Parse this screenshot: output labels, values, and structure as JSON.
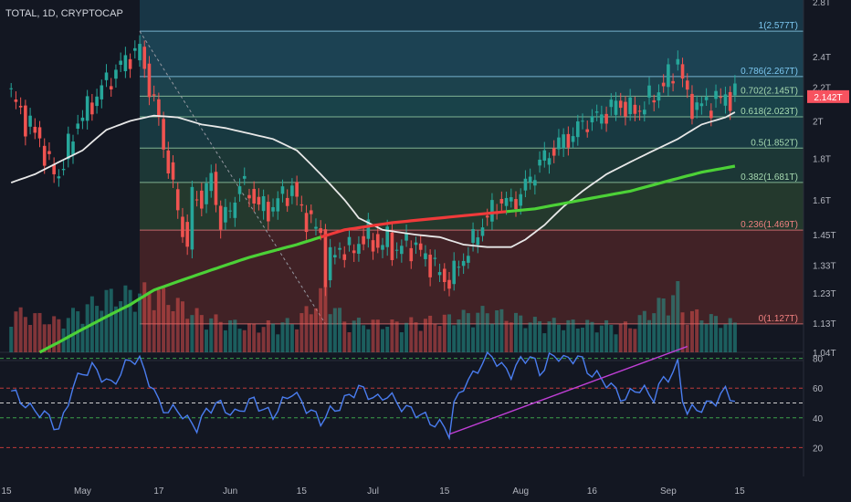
{
  "header": {
    "title": "TOTAL, 1D, CRYPTOCAP"
  },
  "colors": {
    "background": "#131722",
    "up": "#26a69a",
    "down": "#ef5350",
    "ma_fast": "#e8e8e8",
    "ma_slow_up": "#4cd137",
    "ma_slow_down": "#f03a3a",
    "rsi": "#4a7df0",
    "trendline": "#c03fd6",
    "dashed_overlay": "#9598a1",
    "last_price": "#f7525f"
  },
  "price_axis": {
    "ticks": [
      "2.8T",
      "2.4T",
      "2.2T",
      "2T",
      "1.8T",
      "1.6T",
      "1.45T",
      "1.33T",
      "1.23T",
      "1.13T",
      "1.04T"
    ],
    "tick_values": [
      2.8,
      2.4,
      2.2,
      2.0,
      1.8,
      1.6,
      1.45,
      1.33,
      1.23,
      1.13,
      1.04
    ],
    "last_price_label": "2.142T",
    "last_price": 2.142
  },
  "time_axis": {
    "ticks": [
      "15",
      "May",
      "17",
      "Jun",
      "15",
      "Jul",
      "15",
      "Aug",
      "16",
      "Sep",
      "15"
    ],
    "tick_days": [
      -1,
      15,
      31,
      46,
      61,
      76,
      91,
      107,
      122,
      138,
      153
    ]
  },
  "rsi_axis": {
    "ticks": [
      "80",
      "60",
      "40",
      "20"
    ],
    "values": [
      80,
      60,
      40,
      20
    ]
  },
  "chart_data": {
    "type": "candlestick",
    "title": "TOTAL, 1D, CRYPTOCAP",
    "scale": "log",
    "ylim": [
      1.04,
      2.8
    ],
    "xlim_days": [
      -1,
      166
    ],
    "fibonacci": {
      "levels": [
        {
          "ratio": "1",
          "value": 2.577,
          "label": "1(2.577T)"
        },
        {
          "ratio": "0.786",
          "value": 2.267,
          "label": "0.786(2.267T)"
        },
        {
          "ratio": "0.702",
          "value": 2.145,
          "label": "0.702(2.145T)"
        },
        {
          "ratio": "0.618",
          "value": 2.023,
          "label": "0.618(2.023T)"
        },
        {
          "ratio": "0.5",
          "value": 1.852,
          "label": "0.5(1.852T)"
        },
        {
          "ratio": "0.382",
          "value": 1.681,
          "label": "0.382(1.681T)"
        },
        {
          "ratio": "0.236",
          "value": 1.469,
          "label": "0.236(1.469T)"
        },
        {
          "ratio": "0",
          "value": 1.127,
          "label": "0(1.127T)"
        }
      ],
      "start_day": 27
    },
    "close_anchors": [
      [
        0,
        2.15
      ],
      [
        3,
        2.0
      ],
      [
        6,
        1.9
      ],
      [
        8,
        1.75
      ],
      [
        10,
        1.72
      ],
      [
        12,
        1.85
      ],
      [
        14,
        2.0
      ],
      [
        17,
        2.1
      ],
      [
        19,
        2.2
      ],
      [
        22,
        2.3
      ],
      [
        24,
        2.38
      ],
      [
        26,
        2.42
      ],
      [
        27,
        2.45
      ],
      [
        29,
        2.2
      ],
      [
        31,
        2.0
      ],
      [
        33,
        1.75
      ],
      [
        35,
        1.55
      ],
      [
        37,
        1.4
      ],
      [
        38,
        1.62
      ],
      [
        40,
        1.6
      ],
      [
        42,
        1.7
      ],
      [
        44,
        1.5
      ],
      [
        46,
        1.55
      ],
      [
        48,
        1.68
      ],
      [
        50,
        1.63
      ],
      [
        52,
        1.58
      ],
      [
        54,
        1.55
      ],
      [
        57,
        1.62
      ],
      [
        59,
        1.65
      ],
      [
        61,
        1.55
      ],
      [
        63,
        1.5
      ],
      [
        65,
        1.45
      ],
      [
        66,
        1.3
      ],
      [
        67,
        1.35
      ],
      [
        69,
        1.4
      ],
      [
        71,
        1.38
      ],
      [
        73,
        1.42
      ],
      [
        75,
        1.45
      ],
      [
        77,
        1.4
      ],
      [
        79,
        1.43
      ],
      [
        81,
        1.38
      ],
      [
        83,
        1.42
      ],
      [
        86,
        1.38
      ],
      [
        88,
        1.34
      ],
      [
        90,
        1.3
      ],
      [
        91,
        1.27
      ],
      [
        93,
        1.3
      ],
      [
        95,
        1.36
      ],
      [
        97,
        1.42
      ],
      [
        99,
        1.5
      ],
      [
        101,
        1.55
      ],
      [
        103,
        1.6
      ],
      [
        105,
        1.58
      ],
      [
        107,
        1.63
      ],
      [
        109,
        1.7
      ],
      [
        111,
        1.78
      ],
      [
        113,
        1.82
      ],
      [
        115,
        1.88
      ],
      [
        117,
        1.9
      ],
      [
        119,
        1.96
      ],
      [
        121,
        2.0
      ],
      [
        123,
        2.02
      ],
      [
        125,
        2.05
      ],
      [
        127,
        2.1
      ],
      [
        129,
        2.08
      ],
      [
        131,
        2.05
      ],
      [
        133,
        2.1
      ],
      [
        135,
        2.15
      ],
      [
        137,
        2.22
      ],
      [
        139,
        2.3
      ],
      [
        140,
        2.38
      ],
      [
        141,
        2.25
      ],
      [
        142,
        2.12
      ],
      [
        144,
        2.08
      ],
      [
        146,
        2.1
      ],
      [
        148,
        2.12
      ],
      [
        150,
        2.14
      ],
      [
        151,
        2.142
      ]
    ],
    "ma_fast_anchors": [
      [
        0,
        1.68
      ],
      [
        5,
        1.72
      ],
      [
        10,
        1.78
      ],
      [
        15,
        1.84
      ],
      [
        20,
        1.95
      ],
      [
        25,
        2.0
      ],
      [
        30,
        2.03
      ],
      [
        35,
        2.02
      ],
      [
        40,
        1.98
      ],
      [
        45,
        1.96
      ],
      [
        50,
        1.93
      ],
      [
        55,
        1.9
      ],
      [
        60,
        1.84
      ],
      [
        65,
        1.72
      ],
      [
        70,
        1.6
      ],
      [
        73,
        1.52
      ],
      [
        78,
        1.47
      ],
      [
        85,
        1.45
      ],
      [
        90,
        1.44
      ],
      [
        95,
        1.41
      ],
      [
        100,
        1.4
      ],
      [
        105,
        1.4
      ],
      [
        108,
        1.43
      ],
      [
        112,
        1.49
      ],
      [
        116,
        1.57
      ],
      [
        120,
        1.64
      ],
      [
        125,
        1.72
      ],
      [
        130,
        1.78
      ],
      [
        135,
        1.84
      ],
      [
        140,
        1.9
      ],
      [
        145,
        1.98
      ],
      [
        150,
        2.02
      ],
      [
        152,
        2.05
      ]
    ],
    "ma_slow_anchors": [
      [
        6,
        1.04
      ],
      [
        10,
        1.07
      ],
      [
        15,
        1.11
      ],
      [
        20,
        1.15
      ],
      [
        25,
        1.19
      ],
      [
        30,
        1.24
      ],
      [
        40,
        1.3
      ],
      [
        50,
        1.36
      ],
      [
        60,
        1.41
      ],
      [
        65,
        1.44
      ],
      [
        70,
        1.47
      ],
      [
        80,
        1.5
      ],
      [
        90,
        1.52
      ],
      [
        100,
        1.54
      ],
      [
        110,
        1.56
      ],
      [
        120,
        1.6
      ],
      [
        130,
        1.64
      ],
      [
        140,
        1.7
      ],
      [
        145,
        1.73
      ],
      [
        152,
        1.76
      ]
    ],
    "ma_slow_turn_day": 65,
    "ma_slow_upturn_day": 104,
    "rsi_anchors": [
      [
        0,
        58
      ],
      [
        2,
        52
      ],
      [
        4,
        46
      ],
      [
        6,
        44
      ],
      [
        8,
        40
      ],
      [
        10,
        32
      ],
      [
        11,
        40
      ],
      [
        13,
        62
      ],
      [
        15,
        70
      ],
      [
        17,
        74
      ],
      [
        19,
        68
      ],
      [
        21,
        62
      ],
      [
        23,
        70
      ],
      [
        25,
        80
      ],
      [
        27,
        78
      ],
      [
        29,
        65
      ],
      [
        31,
        50
      ],
      [
        33,
        44
      ],
      [
        35,
        46
      ],
      [
        37,
        38
      ],
      [
        39,
        34
      ],
      [
        41,
        44
      ],
      [
        43,
        50
      ],
      [
        45,
        46
      ],
      [
        47,
        42
      ],
      [
        49,
        48
      ],
      [
        51,
        52
      ],
      [
        53,
        45
      ],
      [
        55,
        42
      ],
      [
        57,
        50
      ],
      [
        59,
        58
      ],
      [
        61,
        50
      ],
      [
        63,
        44
      ],
      [
        65,
        38
      ],
      [
        67,
        44
      ],
      [
        69,
        48
      ],
      [
        71,
        55
      ],
      [
        73,
        60
      ],
      [
        75,
        56
      ],
      [
        77,
        52
      ],
      [
        79,
        56
      ],
      [
        81,
        50
      ],
      [
        83,
        46
      ],
      [
        85,
        44
      ],
      [
        87,
        40
      ],
      [
        89,
        36
      ],
      [
        91,
        34
      ],
      [
        92,
        30
      ],
      [
        93,
        48
      ],
      [
        95,
        62
      ],
      [
        97,
        68
      ],
      [
        99,
        78
      ],
      [
        101,
        82
      ],
      [
        103,
        74
      ],
      [
        105,
        70
      ],
      [
        107,
        78
      ],
      [
        109,
        82
      ],
      [
        111,
        70
      ],
      [
        113,
        80
      ],
      [
        115,
        82
      ],
      [
        117,
        78
      ],
      [
        119,
        82
      ],
      [
        121,
        72
      ],
      [
        123,
        68
      ],
      [
        125,
        64
      ],
      [
        127,
        58
      ],
      [
        129,
        52
      ],
      [
        131,
        60
      ],
      [
        133,
        58
      ],
      [
        135,
        54
      ],
      [
        137,
        66
      ],
      [
        139,
        70
      ],
      [
        140,
        76
      ],
      [
        141,
        54
      ],
      [
        142,
        44
      ],
      [
        144,
        46
      ],
      [
        146,
        48
      ],
      [
        148,
        52
      ],
      [
        150,
        58
      ],
      [
        152,
        52
      ]
    ],
    "rsi_trendline": {
      "from": [
        92,
        29
      ],
      "to": [
        142,
        88
      ]
    },
    "volume_anchors": [
      [
        0,
        40
      ],
      [
        10,
        30
      ],
      [
        20,
        55
      ],
      [
        30,
        60
      ],
      [
        40,
        35
      ],
      [
        50,
        25
      ],
      [
        60,
        30
      ],
      [
        66,
        60
      ],
      [
        70,
        30
      ],
      [
        80,
        28
      ],
      [
        90,
        32
      ],
      [
        100,
        40
      ],
      [
        110,
        30
      ],
      [
        120,
        28
      ],
      [
        130,
        26
      ],
      [
        140,
        60
      ],
      [
        141,
        40
      ],
      [
        150,
        30
      ],
      [
        152,
        28
      ]
    ],
    "last_day": 152
  }
}
